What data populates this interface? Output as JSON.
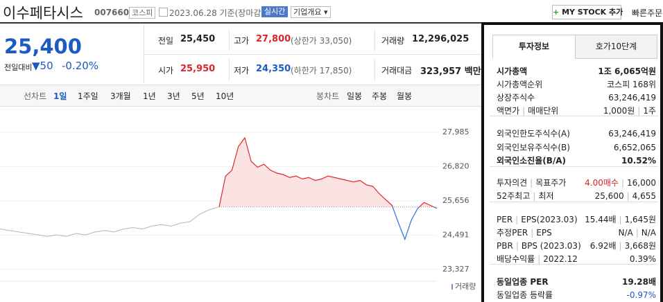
{
  "header": {
    "name": "이수페타시스",
    "code": "007660",
    "market": "코스피",
    "date": "2023.06.28 기준(장마감)",
    "realtime": "실시간",
    "overview": "기업개요",
    "my_stock": "MY STOCK 추가",
    "quick_order": "빠른주문"
  },
  "quote": {
    "price": "25,400",
    "change_label": "전일대비",
    "change": "50",
    "change_rate": "-0.20%"
  },
  "stats": [
    {
      "label": "전일",
      "value": "25,450"
    },
    {
      "label": "고가",
      "value": "27,800",
      "note": "(상한가 33,050)"
    },
    {
      "label": "거래량",
      "value": "12,296,025"
    },
    {
      "label": "시가",
      "value": "25,950"
    },
    {
      "label": "저가",
      "value": "24,350",
      "note": "(하한가 17,850)"
    },
    {
      "label": "거래대금",
      "value": "323,957 백만"
    }
  ],
  "periods": {
    "line_label": "선차트",
    "line": [
      "1일",
      "1주일",
      "3개월",
      "1년",
      "3년",
      "5년",
      "10년"
    ],
    "candle_label": "봉차트",
    "candle": [
      "일봉",
      "주봉",
      "월봉"
    ]
  },
  "chart": {
    "ylim": [
      22950,
      28715
    ],
    "yticks": [
      {
        "value": 27985,
        "label": "27,985"
      },
      {
        "value": 26820,
        "label": "26,820"
      },
      {
        "value": 25656,
        "label": "25,656"
      },
      {
        "value": 24491,
        "label": "24,491"
      },
      {
        "value": 23327,
        "label": "23,327"
      }
    ],
    "baseline": 25450,
    "history": [
      24700,
      24650,
      24600,
      24550,
      24500,
      24450,
      24500,
      24450,
      24550,
      24500,
      24600,
      24650,
      24600,
      24700,
      24750,
      24700,
      24800,
      24850,
      24800,
      24900,
      24950,
      25200,
      25350,
      25450
    ],
    "intraday": [
      25450,
      26500,
      26700,
      27500,
      27800,
      27000,
      26800,
      26900,
      26700,
      26600,
      26550,
      26450,
      26500,
      26400,
      26450,
      26350,
      26400,
      26500,
      26450,
      26400,
      26350,
      26300,
      26350,
      26200,
      26150,
      25900,
      25700,
      25500,
      24900,
      24350,
      25000,
      25400,
      25600,
      25500,
      25400
    ],
    "history_color": "#b5b5b5",
    "up_color": "#e0262b",
    "down_color": "#2a6fdb",
    "area_color": "#fbe3e3",
    "volume_label": "거래량"
  },
  "invest": {
    "tabs": [
      "투자정보",
      "호가10단계"
    ],
    "rows": [
      {
        "labels": [
          "시가총액"
        ],
        "values": [
          "1조 6,065억원"
        ],
        "bold": true
      },
      {
        "labels": [
          "시가총액순위"
        ],
        "values": [
          "코스피 168위"
        ]
      },
      {
        "labels": [
          "상장주식수"
        ],
        "values": [
          "63,246,419"
        ]
      },
      {
        "labels": [
          "액면가",
          "매매단위"
        ],
        "values": [
          "1,000원",
          "1주"
        ]
      },
      {
        "labels": [
          "외국인한도주식수(A)"
        ],
        "values": [
          "63,246,419"
        ]
      },
      {
        "labels": [
          "외국인보유주식수(B)"
        ],
        "values": [
          "6,652,065"
        ]
      },
      {
        "labels": [
          "외국인소진율(B/A)"
        ],
        "values": [
          "10.52%"
        ],
        "bold": true
      },
      {
        "labels": [
          "투자의견",
          "목표주가"
        ],
        "values": [
          "4.00매수",
          "16,000"
        ],
        "color": "#d9252b"
      },
      {
        "labels": [
          "52주최고",
          "최저"
        ],
        "values": [
          "25,600",
          "4,655"
        ]
      },
      {
        "labels": [
          "PER",
          "EPS(2023.03)"
        ],
        "values": [
          "15.44배",
          "1,645원"
        ]
      },
      {
        "labels": [
          "추정PER",
          "EPS"
        ],
        "values": [
          "N/A",
          "N/A"
        ]
      },
      {
        "labels": [
          "PBR",
          "BPS (2023.03)"
        ],
        "values": [
          "6.92배",
          "3,668원"
        ]
      },
      {
        "labels": [
          "배당수익률",
          "2022.12"
        ],
        "values": [
          "0.39%"
        ]
      },
      {
        "labels": [
          "동일업종 PER"
        ],
        "values": [
          "19.28배"
        ],
        "bold": true
      },
      {
        "labels": [
          "동일업종 등락률"
        ],
        "values": [
          "-0.97%"
        ],
        "color": "#1a5bc4"
      }
    ]
  }
}
